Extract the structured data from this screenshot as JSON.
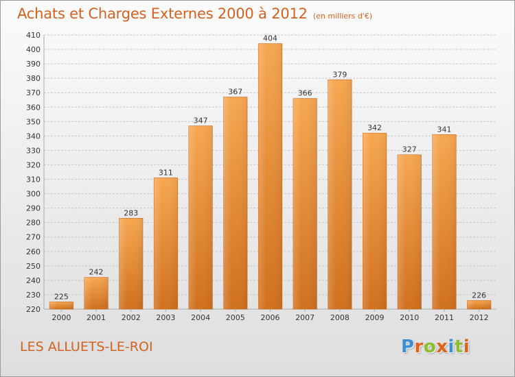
{
  "header": {
    "title": "Achats et Charges Externes 2000 à 2012",
    "subtitle": "(en milliers d'€)"
  },
  "footer": {
    "commune": "LES ALLUETS-LE-ROI",
    "brand_logo": "Proxiti"
  },
  "colors": {
    "accent": "#d4611f",
    "bar_light": "#f6a24f",
    "bar_dark": "#d4711e",
    "grid": "#c8c8c8",
    "axis_text": "#333333"
  },
  "chart_data": {
    "type": "bar",
    "categories": [
      "2000",
      "2001",
      "2002",
      "2003",
      "2004",
      "2005",
      "2006",
      "2007",
      "2008",
      "2009",
      "2010",
      "2011",
      "2012"
    ],
    "values": [
      225,
      242,
      283,
      311,
      347,
      367,
      404,
      366,
      379,
      342,
      327,
      341,
      226
    ],
    "title": "Achats et Charges Externes 2000 à 2012",
    "xlabel": "",
    "ylabel": "",
    "ylim": [
      220,
      410
    ],
    "yticks": [
      220,
      230,
      240,
      250,
      260,
      270,
      280,
      290,
      300,
      310,
      320,
      330,
      340,
      350,
      360,
      370,
      380,
      390,
      400,
      410
    ],
    "grid": true,
    "data_labels": true
  }
}
